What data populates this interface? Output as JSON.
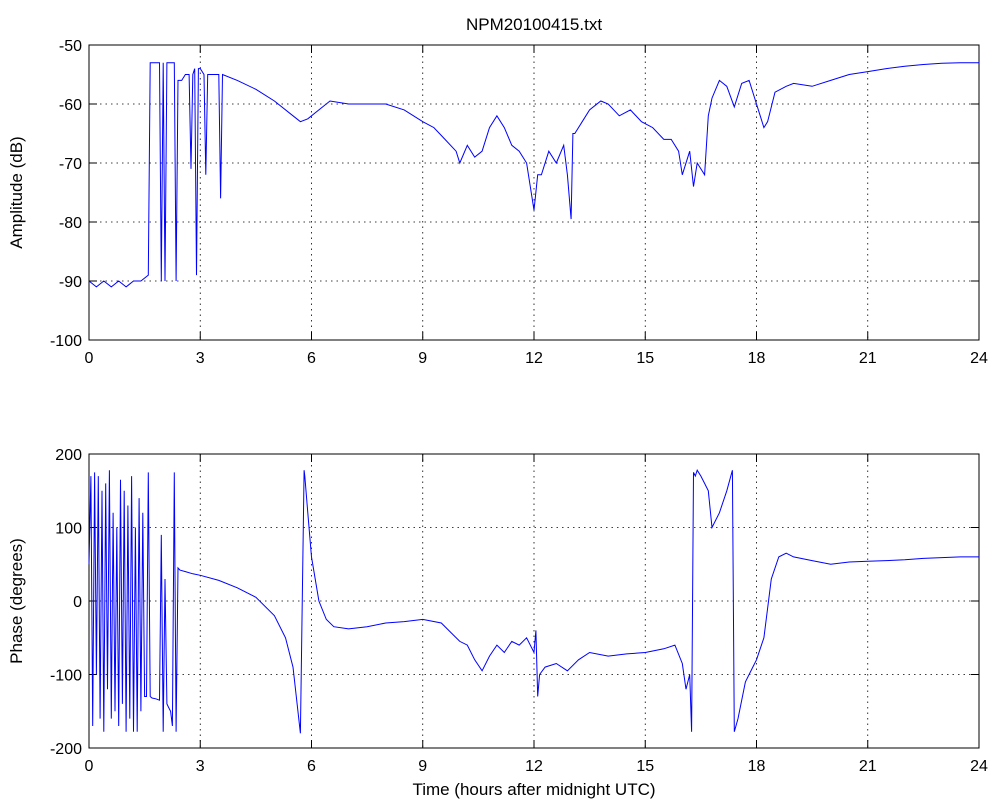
{
  "chart_data": [
    {
      "type": "line",
      "title": "NPM20100415.txt",
      "xlabel": "",
      "ylabel": "Amplitude (dB)",
      "xlim": [
        0,
        24
      ],
      "ylim": [
        -100,
        -50
      ],
      "xticks": [
        "0",
        "3",
        "6",
        "9",
        "12",
        "15",
        "18",
        "21",
        "24"
      ],
      "yticks": [
        "-50",
        "-60",
        "-70",
        "-80",
        "-90",
        "-100"
      ],
      "grid": true,
      "color": "#0000ff",
      "series": [
        {
          "x": [
            0,
            0.2,
            0.4,
            0.6,
            0.8,
            1.0,
            1.2,
            1.4,
            1.6,
            1.65,
            1.7,
            1.9,
            1.95,
            2.0,
            2.05,
            2.1,
            2.3,
            2.35,
            2.4,
            2.45,
            2.5,
            2.6,
            2.7,
            2.75,
            2.8,
            2.85,
            2.9,
            2.95,
            3.0,
            3.1,
            3.15,
            3.2,
            3.5,
            3.55,
            3.6,
            4.0,
            4.5,
            5.0,
            5.5,
            5.7,
            5.9,
            6.2,
            6.5,
            7.0,
            7.5,
            8.0,
            8.5,
            9.0,
            9.3,
            9.6,
            9.9,
            10.0,
            10.2,
            10.4,
            10.6,
            10.8,
            11.0,
            11.2,
            11.4,
            11.6,
            11.8,
            12.0,
            12.1,
            12.2,
            12.4,
            12.6,
            12.8,
            12.9,
            13.0,
            13.05,
            13.1,
            13.3,
            13.5,
            13.8,
            14.0,
            14.3,
            14.6,
            14.9,
            15.2,
            15.5,
            15.7,
            15.9,
            16.0,
            16.2,
            16.3,
            16.4,
            16.5,
            16.6,
            16.7,
            16.8,
            17.0,
            17.2,
            17.4,
            17.6,
            17.8,
            18.0,
            18.2,
            18.3,
            18.5,
            18.8,
            19.0,
            19.5,
            20.0,
            20.5,
            21.0,
            21.5,
            22.0,
            22.5,
            23.0,
            23.5,
            24.0
          ],
          "values": [
            -90,
            -91,
            -90,
            -91,
            -90,
            -91,
            -90,
            -90,
            -89,
            -53,
            -53,
            -53,
            -90,
            -53,
            -90,
            -53,
            -53,
            -90,
            -56,
            -56,
            -56,
            -55,
            -55,
            -71,
            -55,
            -54,
            -89,
            -54,
            -54,
            -55,
            -72,
            -55,
            -55,
            -76,
            -55,
            -56,
            -57.5,
            -59.5,
            -62,
            -63,
            -62.5,
            -61,
            -59.5,
            -60,
            -60,
            -60,
            -61,
            -63,
            -64,
            -66,
            -68,
            -70,
            -67,
            -69,
            -68,
            -64,
            -62,
            -64,
            -67,
            -68,
            -70,
            -78,
            -72,
            -72,
            -68,
            -70,
            -67,
            -72,
            -79.5,
            -65,
            -65,
            -63,
            -61,
            -59.5,
            -60,
            -62,
            -61,
            -63,
            -64,
            -66,
            -66,
            -68,
            -72,
            -68,
            -74,
            -70,
            -71,
            -72,
            -62,
            -59,
            -56,
            -57,
            -60.5,
            -56.5,
            -56,
            -60,
            -64,
            -63,
            -58,
            -57,
            -56.5,
            -57,
            -56,
            -55,
            -54.5,
            -54,
            -53.6,
            -53.3,
            -53.1,
            -53,
            -53
          ]
        }
      ]
    },
    {
      "type": "line",
      "title": "",
      "xlabel": "Time (hours after midnight UTC)",
      "ylabel": "Phase (degrees)",
      "xlim": [
        0,
        24
      ],
      "ylim": [
        -200,
        200
      ],
      "xticks": [
        "0",
        "3",
        "6",
        "9",
        "12",
        "15",
        "18",
        "21",
        "24"
      ],
      "yticks": [
        "200",
        "100",
        "0",
        "-100",
        "-200"
      ],
      "grid": true,
      "color": "#0000ff",
      "series": [
        {
          "x": [
            0,
            0.05,
            0.1,
            0.15,
            0.2,
            0.25,
            0.3,
            0.35,
            0.4,
            0.45,
            0.5,
            0.55,
            0.6,
            0.65,
            0.7,
            0.75,
            0.8,
            0.85,
            0.9,
            0.95,
            1.0,
            1.05,
            1.1,
            1.15,
            1.2,
            1.25,
            1.3,
            1.35,
            1.4,
            1.45,
            1.5,
            1.55,
            1.6,
            1.65,
            1.7,
            1.8,
            1.9,
            1.95,
            2.0,
            2.05,
            2.1,
            2.15,
            2.2,
            2.25,
            2.3,
            2.35,
            2.4,
            2.45,
            2.6,
            2.8,
            3.0,
            3.5,
            4.0,
            4.5,
            5.0,
            5.3,
            5.5,
            5.7,
            5.8,
            5.82,
            5.9,
            6.0,
            6.2,
            6.4,
            6.6,
            7.0,
            7.5,
            8.0,
            8.5,
            9.0,
            9.5,
            10.0,
            10.2,
            10.4,
            10.6,
            10.8,
            11.0,
            11.2,
            11.4,
            11.6,
            11.8,
            12.0,
            12.05,
            12.1,
            12.15,
            12.3,
            12.6,
            12.9,
            13.2,
            13.5,
            14.0,
            14.5,
            15.0,
            15.5,
            15.8,
            16.0,
            16.1,
            16.2,
            16.25,
            16.3,
            16.35,
            16.4,
            16.5,
            16.6,
            16.7,
            16.8,
            17.0,
            17.2,
            17.35,
            17.4,
            17.5,
            17.7,
            17.9,
            18.0,
            18.2,
            18.4,
            18.6,
            18.8,
            19.0,
            19.5,
            20.0,
            20.5,
            21.0,
            21.5,
            22.0,
            22.5,
            23.0,
            23.5,
            24.0
          ],
          "values": [
            50,
            170,
            -170,
            175,
            -100,
            170,
            -160,
            150,
            -178,
            160,
            -120,
            178,
            -160,
            120,
            -150,
            100,
            -170,
            165,
            -140,
            150,
            -178,
            130,
            -160,
            170,
            -178,
            100,
            -178,
            140,
            -150,
            120,
            -130,
            -130,
            175,
            -130,
            -132,
            -133,
            -135,
            90,
            -178,
            30,
            -140,
            -145,
            -150,
            -170,
            175,
            -178,
            45,
            42,
            40,
            37,
            35,
            28,
            18,
            5,
            -20,
            -50,
            -90,
            -180,
            178,
            170,
            120,
            60,
            0,
            -25,
            -35,
            -38,
            -35,
            -30,
            -28,
            -25,
            -30,
            -55,
            -60,
            -80,
            -95,
            -75,
            -60,
            -70,
            -55,
            -60,
            -50,
            -70,
            -40,
            -130,
            -100,
            -90,
            -85,
            -95,
            -80,
            -70,
            -75,
            -72,
            -70,
            -65,
            -60,
            -85,
            -120,
            -100,
            -178,
            175,
            170,
            178,
            170,
            160,
            150,
            100,
            120,
            150,
            178,
            -178,
            -160,
            -110,
            -90,
            -80,
            -50,
            30,
            60,
            65,
            60,
            55,
            50,
            53,
            54,
            55,
            56,
            58,
            59,
            60,
            60
          ]
        }
      ]
    }
  ]
}
